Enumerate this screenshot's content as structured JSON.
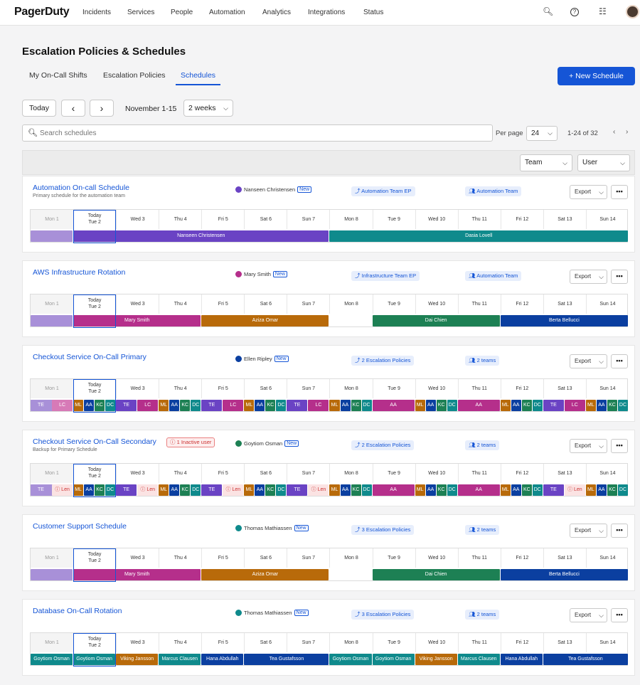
{
  "nav": {
    "logo": "PagerDuty",
    "items": [
      "Incidents",
      "Services",
      "People",
      "Automation",
      "Analytics",
      "Integrations",
      "Status"
    ],
    "icons": [
      "search-icon",
      "help-icon",
      "gift-icon",
      "avatar"
    ]
  },
  "page": {
    "title": "Escalation Policies & Schedules",
    "tabs": [
      "My On-Call Shifts",
      "Escalation Policies",
      "Schedules"
    ],
    "active_tab": "Schedules",
    "new_button": "+ New Schedule"
  },
  "toolbar": {
    "today": "Today",
    "prev": "‹",
    "next": "›",
    "range": "November 1-15",
    "span": "2 weeks",
    "search_placeholder": "Search schedules",
    "per_page_label": "Per page",
    "per_page": "24",
    "pagination": "1-24 of 32",
    "team_filter": "Team",
    "user_filter": "User"
  },
  "days": [
    "Mon 1",
    "Tue 2",
    "Wed 3",
    "Thu 4",
    "Fri 5",
    "Sat 6",
    "Sun 7",
    "Mon 8",
    "Tue 9",
    "Wed 10",
    "Thu 11",
    "Fri 12",
    "Sat 13",
    "Sun 14"
  ],
  "today_label": "Today",
  "export_label": "Export",
  "new_badge": "New",
  "colors": {
    "accent": "#1555d6",
    "purple": "#6a43c4",
    "teal": "#0f8a8c",
    "magenta": "#b52f8b",
    "orange": "#b86a0a",
    "green": "#1d8054",
    "navy": "#0b3fa0",
    "lavender": "#a890d8"
  },
  "schedules": [
    {
      "name": "Automation On-call Schedule",
      "desc": "Primary schedule for the automation team",
      "owner": "Nanseen Christensen",
      "ep": "Automation Team EP",
      "team": "Automation Team",
      "segments": [
        {
          "label": "Nanseen Christensen",
          "color": "purple"
        },
        {
          "label": "Dasia Lovell",
          "color": "teal"
        }
      ]
    },
    {
      "name": "AWS Infrastructure Rotation",
      "owner": "Mary Smith",
      "ep": "Infrastructure Team EP",
      "team": "Automation Team",
      "segments": [
        {
          "label": "Mary Smith",
          "color": "magenta"
        },
        {
          "label": "Aziza Omar",
          "color": "orange"
        },
        {
          "label": "Dai Chien",
          "color": "green"
        },
        {
          "label": "Berta Bellucci",
          "color": "navy"
        }
      ]
    },
    {
      "name": "Checkout Service On-Call Primary",
      "owner": "Ellen Ripley",
      "ep": "2 Escalation Policies",
      "team": "2 teams",
      "segments": [
        {
          "label": "TE"
        },
        {
          "label": "LC"
        },
        {
          "label": "ML"
        },
        {
          "label": "AA"
        },
        {
          "label": "KC"
        },
        {
          "label": "DC"
        },
        {
          "label": "AA"
        }
      ]
    },
    {
      "name": "Checkout Service On-Call Secondary",
      "desc": "Backup for Primary Schedule",
      "inactive": "1 Inactive user",
      "owner": "Goytiom Osman",
      "ep": "2 Escalation Policies",
      "team": "2 teams",
      "segments": [
        {
          "label": "TE"
        },
        {
          "label": "Len"
        },
        {
          "label": "ML"
        },
        {
          "label": "AA"
        },
        {
          "label": "KC"
        },
        {
          "label": "DC"
        },
        {
          "label": "AA"
        }
      ]
    },
    {
      "name": "Customer Support Schedule",
      "owner": "Thomas Mathiassen",
      "ep": "3 Escalation Policies",
      "team": "2 teams",
      "segments": [
        {
          "label": "Mary Smith",
          "color": "magenta"
        },
        {
          "label": "Aziza Omar",
          "color": "orange"
        },
        {
          "label": "Dai Chien",
          "color": "green"
        },
        {
          "label": "Berta Bellucci",
          "color": "navy"
        }
      ]
    },
    {
      "name": "Database On-Call Rotation",
      "owner": "Thomas Mathiassen",
      "ep": "3 Escalation Policies",
      "team": "2 teams",
      "segments": [
        {
          "label": "Goytiom Osman",
          "color": "teal"
        },
        {
          "label": "Viking Jansson",
          "color": "orange"
        },
        {
          "label": "Marcus Clausen",
          "color": "teal"
        },
        {
          "label": "Hana Abdullah",
          "color": "navy"
        },
        {
          "label": "Tea Gustafsson",
          "color": "navy"
        }
      ]
    }
  ]
}
